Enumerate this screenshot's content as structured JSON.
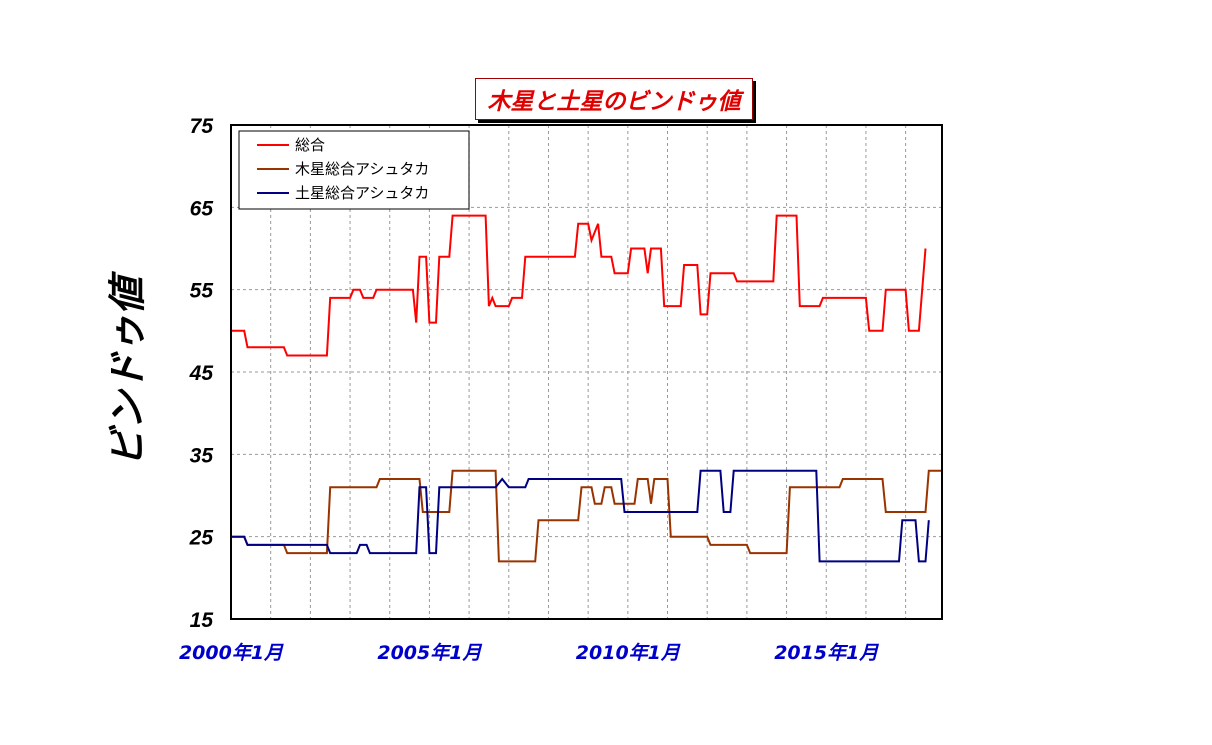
{
  "chart_data": {
    "type": "line",
    "title": "木星と土星のビンドゥ値",
    "ylabel": "ビンドゥ値",
    "xlabel": "",
    "xlim": [
      "2000-01",
      "2017-12"
    ],
    "ylim": [
      15,
      75
    ],
    "y_ticks": [
      "75",
      "65",
      "55",
      "45",
      "35",
      "25",
      "15"
    ],
    "x_ticks": [
      {
        "label": "2000年1月",
        "value": "2000-01"
      },
      {
        "label": "2005年1月",
        "value": "2005-01"
      },
      {
        "label": "2010年1月",
        "value": "2010-01"
      },
      {
        "label": "2015年1月",
        "value": "2015-01"
      }
    ],
    "grid": true,
    "legend_position": "top-left",
    "series": [
      {
        "name": "総合",
        "color": "#ff0000",
        "points": [
          [
            "2000-01",
            50
          ],
          [
            "2000-05",
            50
          ],
          [
            "2000-06",
            48
          ],
          [
            "2001-05",
            48
          ],
          [
            "2001-06",
            47
          ],
          [
            "2002-06",
            47
          ],
          [
            "2002-07",
            54
          ],
          [
            "2003-01",
            54
          ],
          [
            "2003-02",
            55
          ],
          [
            "2003-04",
            55
          ],
          [
            "2003-05",
            54
          ],
          [
            "2003-08",
            54
          ],
          [
            "2003-09",
            55
          ],
          [
            "2004-08",
            55
          ],
          [
            "2004-09",
            51
          ],
          [
            "2004-10",
            59
          ],
          [
            "2004-12",
            59
          ],
          [
            "2005-01",
            51
          ],
          [
            "2005-03",
            51
          ],
          [
            "2005-04",
            59
          ],
          [
            "2005-07",
            59
          ],
          [
            "2005-08",
            64
          ],
          [
            "2006-06",
            64
          ],
          [
            "2006-07",
            53
          ],
          [
            "2006-08",
            54
          ],
          [
            "2006-09",
            53
          ],
          [
            "2007-01",
            53
          ],
          [
            "2007-02",
            54
          ],
          [
            "2007-05",
            54
          ],
          [
            "2007-06",
            59
          ],
          [
            "2008-09",
            59
          ],
          [
            "2008-10",
            63
          ],
          [
            "2009-01",
            63
          ],
          [
            "2009-02",
            61
          ],
          [
            "2009-04",
            63
          ],
          [
            "2009-05",
            59
          ],
          [
            "2009-08",
            59
          ],
          [
            "2009-09",
            57
          ],
          [
            "2010-01",
            57
          ],
          [
            "2010-02",
            60
          ],
          [
            "2010-06",
            60
          ],
          [
            "2010-07",
            57
          ],
          [
            "2010-08",
            60
          ],
          [
            "2010-11",
            60
          ],
          [
            "2010-12",
            53
          ],
          [
            "2011-05",
            53
          ],
          [
            "2011-06",
            58
          ],
          [
            "2011-10",
            58
          ],
          [
            "2011-11",
            52
          ],
          [
            "2012-01",
            52
          ],
          [
            "2012-02",
            57
          ],
          [
            "2012-09",
            57
          ],
          [
            "2012-10",
            56
          ],
          [
            "2013-09",
            56
          ],
          [
            "2013-10",
            64
          ],
          [
            "2014-04",
            64
          ],
          [
            "2014-05",
            53
          ],
          [
            "2014-11",
            53
          ],
          [
            "2014-12",
            54
          ],
          [
            "2016-01",
            54
          ],
          [
            "2016-02",
            50
          ],
          [
            "2016-06",
            50
          ],
          [
            "2016-07",
            55
          ],
          [
            "2017-01",
            55
          ],
          [
            "2017-02",
            50
          ],
          [
            "2017-05",
            50
          ],
          [
            "2017-07",
            60
          ]
        ]
      },
      {
        "name": "木星総合アシュタカ",
        "color": "#993300",
        "points": [
          [
            "2000-01",
            25
          ],
          [
            "2000-05",
            25
          ],
          [
            "2000-06",
            24
          ],
          [
            "2001-05",
            24
          ],
          [
            "2001-06",
            23
          ],
          [
            "2002-06",
            23
          ],
          [
            "2002-07",
            31
          ],
          [
            "2003-09",
            31
          ],
          [
            "2003-10",
            32
          ],
          [
            "2004-10",
            32
          ],
          [
            "2004-11",
            28
          ],
          [
            "2005-07",
            28
          ],
          [
            "2005-08",
            33
          ],
          [
            "2006-09",
            33
          ],
          [
            "2006-10",
            22
          ],
          [
            "2007-09",
            22
          ],
          [
            "2007-10",
            27
          ],
          [
            "2008-10",
            27
          ],
          [
            "2008-11",
            31
          ],
          [
            "2009-02",
            31
          ],
          [
            "2009-03",
            29
          ],
          [
            "2009-05",
            29
          ],
          [
            "2009-06",
            31
          ],
          [
            "2009-08",
            31
          ],
          [
            "2009-09",
            29
          ],
          [
            "2010-03",
            29
          ],
          [
            "2010-04",
            32
          ],
          [
            "2010-07",
            32
          ],
          [
            "2010-08",
            29
          ],
          [
            "2010-09",
            32
          ],
          [
            "2011-01",
            32
          ],
          [
            "2011-02",
            25
          ],
          [
            "2012-01",
            25
          ],
          [
            "2012-02",
            24
          ],
          [
            "2013-01",
            24
          ],
          [
            "2013-02",
            23
          ],
          [
            "2014-01",
            23
          ],
          [
            "2014-02",
            31
          ],
          [
            "2015-05",
            31
          ],
          [
            "2015-06",
            32
          ],
          [
            "2016-06",
            32
          ],
          [
            "2016-07",
            28
          ],
          [
            "2017-07",
            28
          ],
          [
            "2017-08",
            33
          ],
          [
            "2017-12",
            33
          ]
        ]
      },
      {
        "name": "土星総合アシュタカ",
        "color": "#000080",
        "points": [
          [
            "2000-01",
            25
          ],
          [
            "2000-05",
            25
          ],
          [
            "2000-06",
            24
          ],
          [
            "2002-06",
            24
          ],
          [
            "2002-07",
            23
          ],
          [
            "2003-03",
            23
          ],
          [
            "2003-04",
            24
          ],
          [
            "2003-06",
            24
          ],
          [
            "2003-07",
            23
          ],
          [
            "2004-09",
            23
          ],
          [
            "2004-10",
            31
          ],
          [
            "2004-12",
            31
          ],
          [
            "2005-01",
            23
          ],
          [
            "2005-03",
            23
          ],
          [
            "2005-04",
            31
          ],
          [
            "2006-09",
            31
          ],
          [
            "2006-11",
            32
          ],
          [
            "2007-01",
            31
          ],
          [
            "2007-06",
            31
          ],
          [
            "2007-07",
            32
          ],
          [
            "2009-11",
            32
          ],
          [
            "2009-12",
            28
          ],
          [
            "2011-10",
            28
          ],
          [
            "2011-11",
            33
          ],
          [
            "2012-05",
            33
          ],
          [
            "2012-06",
            28
          ],
          [
            "2012-08",
            28
          ],
          [
            "2012-09",
            33
          ],
          [
            "2014-10",
            33
          ],
          [
            "2014-11",
            22
          ],
          [
            "2016-11",
            22
          ],
          [
            "2016-12",
            27
          ],
          [
            "2017-04",
            27
          ],
          [
            "2017-05",
            22
          ],
          [
            "2017-07",
            22
          ],
          [
            "2017-08",
            27
          ]
        ]
      }
    ]
  }
}
